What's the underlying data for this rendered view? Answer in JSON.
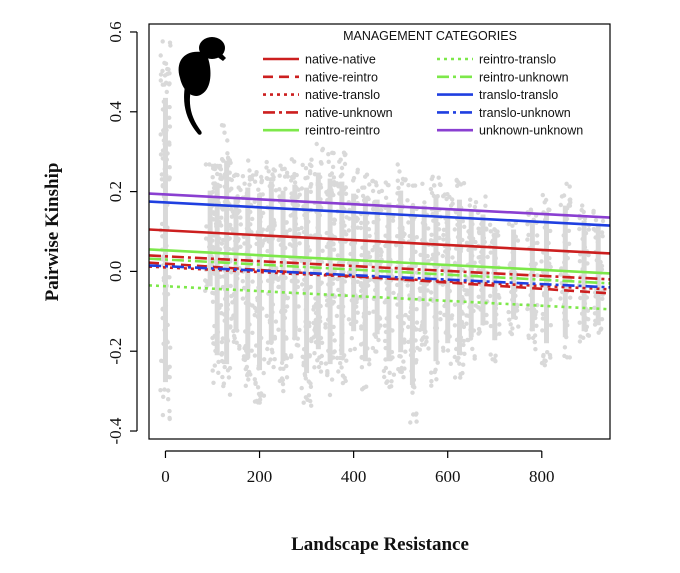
{
  "chart_data": {
    "type": "scatter",
    "title": "",
    "xlabel": "Landscape Resistance",
    "ylabel": "Pairwise Kinship",
    "xlim": [
      -35,
      945
    ],
    "ylim": [
      -0.42,
      0.62
    ],
    "xticks": [
      0,
      200,
      400,
      600,
      800
    ],
    "yticks": [
      -0.4,
      -0.2,
      0.0,
      0.2,
      0.4,
      0.6
    ],
    "xtick_labels": [
      "0",
      "200",
      "400",
      "600",
      "800"
    ],
    "ytick_labels": [
      "-0.4",
      "-0.2",
      "0.0",
      "0.2",
      "0.4",
      "0.6"
    ],
    "grid": false,
    "legend": {
      "title": "MANAGEMENT CATEGORIES",
      "placement": "top-right",
      "columns": 2
    },
    "points_color": "#d9d9d9",
    "point_columns": [
      {
        "x": 0,
        "y_min": -0.37,
        "y_max": 0.58
      },
      {
        "x": 95,
        "y_min": -0.05,
        "y_max": 0.27
      },
      {
        "x": 110,
        "y_min": -0.28,
        "y_max": 0.29
      },
      {
        "x": 130,
        "y_min": -0.31,
        "y_max": 0.37
      },
      {
        "x": 150,
        "y_min": -0.2,
        "y_max": 0.25
      },
      {
        "x": 175,
        "y_min": -0.29,
        "y_max": 0.28
      },
      {
        "x": 200,
        "y_min": -0.33,
        "y_max": 0.26
      },
      {
        "x": 225,
        "y_min": -0.24,
        "y_max": 0.3
      },
      {
        "x": 250,
        "y_min": -0.3,
        "y_max": 0.27
      },
      {
        "x": 275,
        "y_min": -0.22,
        "y_max": 0.29
      },
      {
        "x": 300,
        "y_min": -0.34,
        "y_max": 0.28
      },
      {
        "x": 325,
        "y_min": -0.26,
        "y_max": 0.33
      },
      {
        "x": 350,
        "y_min": -0.31,
        "y_max": 0.31
      },
      {
        "x": 375,
        "y_min": -0.28,
        "y_max": 0.3
      },
      {
        "x": 400,
        "y_min": -0.2,
        "y_max": 0.26
      },
      {
        "x": 425,
        "y_min": -0.3,
        "y_max": 0.25
      },
      {
        "x": 450,
        "y_min": -0.21,
        "y_max": 0.24
      },
      {
        "x": 475,
        "y_min": -0.3,
        "y_max": 0.23
      },
      {
        "x": 500,
        "y_min": -0.27,
        "y_max": 0.27
      },
      {
        "x": 525,
        "y_min": -0.38,
        "y_max": 0.22
      },
      {
        "x": 550,
        "y_min": -0.2,
        "y_max": 0.22
      },
      {
        "x": 575,
        "y_min": -0.3,
        "y_max": 0.25
      },
      {
        "x": 600,
        "y_min": -0.24,
        "y_max": 0.21
      },
      {
        "x": 625,
        "y_min": -0.28,
        "y_max": 0.24
      },
      {
        "x": 650,
        "y_min": -0.22,
        "y_max": 0.2
      },
      {
        "x": 675,
        "y_min": -0.18,
        "y_max": 0.19
      },
      {
        "x": 700,
        "y_min": -0.23,
        "y_max": 0.13
      },
      {
        "x": 740,
        "y_min": -0.16,
        "y_max": 0.14
      },
      {
        "x": 780,
        "y_min": -0.2,
        "y_max": 0.16
      },
      {
        "x": 810,
        "y_min": -0.24,
        "y_max": 0.2
      },
      {
        "x": 850,
        "y_min": -0.22,
        "y_max": 0.22
      },
      {
        "x": 890,
        "y_min": -0.2,
        "y_max": 0.17
      },
      {
        "x": 920,
        "y_min": -0.18,
        "y_max": 0.16
      }
    ],
    "series": [
      {
        "name": "native-native",
        "color": "#cc1f1f",
        "dash": "solid",
        "x": [
          -35,
          945
        ],
        "y": [
          0.105,
          0.045
        ]
      },
      {
        "name": "native-reintro",
        "color": "#cc1f1f",
        "dash": "dashed",
        "x": [
          -35,
          945
        ],
        "y": [
          0.022,
          -0.055
        ]
      },
      {
        "name": "native-translo",
        "color": "#cc1f1f",
        "dash": "dotted",
        "x": [
          -35,
          945
        ],
        "y": [
          0.012,
          -0.045
        ]
      },
      {
        "name": "native-unknown",
        "color": "#cc1f1f",
        "dash": "dashdot",
        "x": [
          -35,
          945
        ],
        "y": [
          0.04,
          -0.02
        ]
      },
      {
        "name": "reintro-reintro",
        "color": "#7de84a",
        "dash": "solid",
        "x": [
          -35,
          945
        ],
        "y": [
          0.055,
          -0.005
        ]
      },
      {
        "name": "reintro-translo",
        "color": "#7de84a",
        "dash": "dotted",
        "x": [
          -35,
          945
        ],
        "y": [
          -0.035,
          -0.095
        ]
      },
      {
        "name": "reintro-unknown",
        "color": "#7de84a",
        "dash": "dashdot",
        "x": [
          -35,
          945
        ],
        "y": [
          0.032,
          -0.03
        ]
      },
      {
        "name": "translo-translo",
        "color": "#1f3fe0",
        "dash": "solid",
        "x": [
          -35,
          945
        ],
        "y": [
          0.175,
          0.115
        ]
      },
      {
        "name": "translo-unknown",
        "color": "#1f3fe0",
        "dash": "dashdot",
        "x": [
          -35,
          945
        ],
        "y": [
          0.015,
          -0.04
        ]
      },
      {
        "name": "unknown-unknown",
        "color": "#8a3fd1",
        "dash": "solid",
        "x": [
          -35,
          945
        ],
        "y": [
          0.195,
          0.135
        ]
      }
    ]
  },
  "decoration": {
    "silhouette_icon": "monkey-silhouette-icon"
  }
}
